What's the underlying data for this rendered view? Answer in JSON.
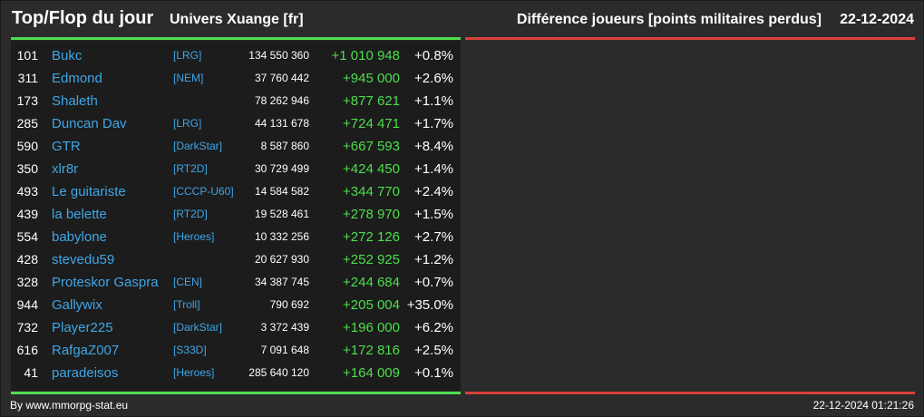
{
  "header": {
    "title": "Top/Flop du jour",
    "universe": "Univers Xuange [fr]",
    "metric": "Différence joueurs [points militaires perdus]",
    "date": "22-12-2024"
  },
  "rows": [
    {
      "rank": "101",
      "name": "Bukc",
      "alliance": "[LRG]",
      "total": "134 550 360",
      "diff": "+1 010 948",
      "pct": "+0.8%"
    },
    {
      "rank": "311",
      "name": "Edmond",
      "alliance": "[NEM]",
      "total": "37 760 442",
      "diff": "+945 000",
      "pct": "+2.6%"
    },
    {
      "rank": "173",
      "name": "Shaleth",
      "alliance": "",
      "total": "78 262 946",
      "diff": "+877 621",
      "pct": "+1.1%"
    },
    {
      "rank": "285",
      "name": "Duncan Dav",
      "alliance": "[LRG]",
      "total": "44 131 678",
      "diff": "+724 471",
      "pct": "+1.7%"
    },
    {
      "rank": "590",
      "name": "GTR",
      "alliance": "[DarkStar]",
      "total": "8 587 860",
      "diff": "+667 593",
      "pct": "+8.4%"
    },
    {
      "rank": "350",
      "name": "xlr8r",
      "alliance": "[RT2D]",
      "total": "30 729 499",
      "diff": "+424 450",
      "pct": "+1.4%"
    },
    {
      "rank": "493",
      "name": "Le guitariste",
      "alliance": "[CCCP-U60]",
      "total": "14 584 582",
      "diff": "+344 770",
      "pct": "+2.4%"
    },
    {
      "rank": "439",
      "name": "la belette",
      "alliance": "[RT2D]",
      "total": "19 528 461",
      "diff": "+278 970",
      "pct": "+1.5%"
    },
    {
      "rank": "554",
      "name": "babylone",
      "alliance": "[Heroes]",
      "total": "10 332 256",
      "diff": "+272 126",
      "pct": "+2.7%"
    },
    {
      "rank": "428",
      "name": "stevedu59",
      "alliance": "",
      "total": "20 627 930",
      "diff": "+252 925",
      "pct": "+1.2%"
    },
    {
      "rank": "328",
      "name": "Proteskor Gaspra",
      "alliance": "[CEN]",
      "total": "34 387 745",
      "diff": "+244 684",
      "pct": "+0.7%"
    },
    {
      "rank": "944",
      "name": "Gallywix",
      "alliance": "[Troll]",
      "total": "790 692",
      "diff": "+205 004",
      "pct": "+35.0%"
    },
    {
      "rank": "732",
      "name": "Player225",
      "alliance": "[DarkStar]",
      "total": "3 372 439",
      "diff": "+196 000",
      "pct": "+6.2%"
    },
    {
      "rank": "616",
      "name": "RafgaZ007",
      "alliance": "[S33D]",
      "total": "7 091 648",
      "diff": "+172 816",
      "pct": "+2.5%"
    },
    {
      "rank": "41",
      "name": "paradeisos",
      "alliance": "[Heroes]",
      "total": "285 640 120",
      "diff": "+164 009",
      "pct": "+0.1%"
    }
  ],
  "footer": {
    "credit": "By www.mmorpg-stat.eu",
    "timestamp": "22-12-2024 01:21:26"
  },
  "colors": {
    "background": "#2b2b2b",
    "panel": "#1c1c1c",
    "link": "#3fa6e6",
    "positive": "#4ddd4d",
    "negative": "#d9413b"
  }
}
